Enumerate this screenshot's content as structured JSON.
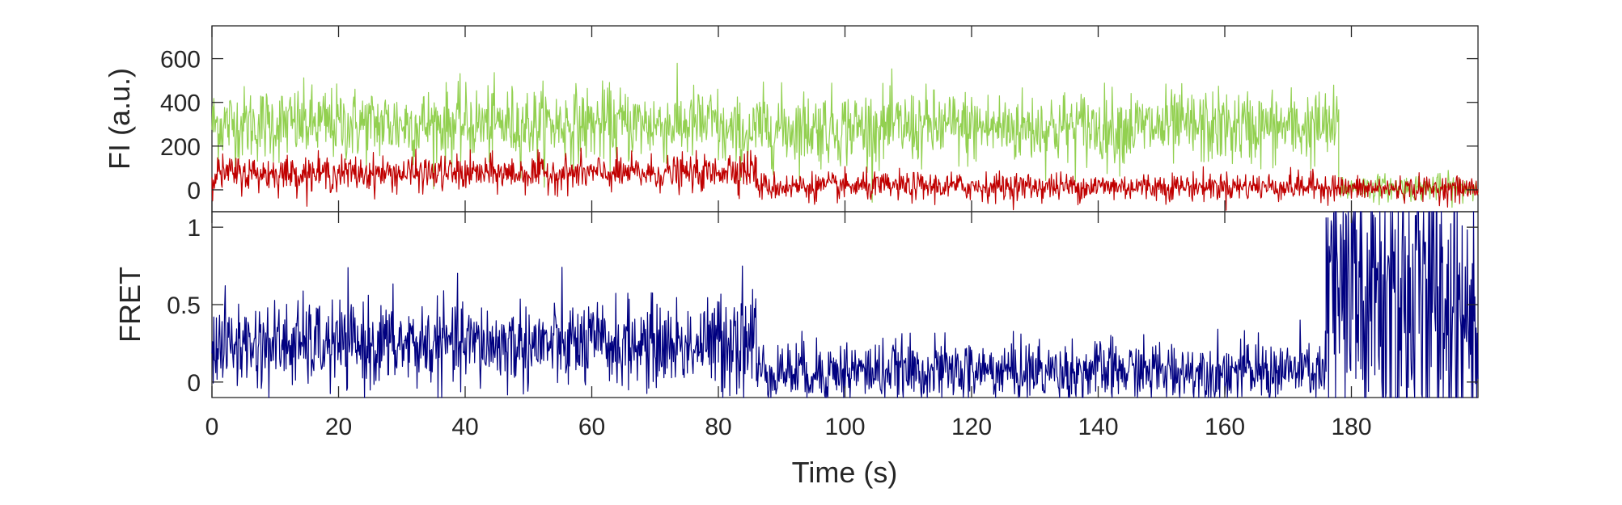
{
  "chart_data": [
    {
      "type": "line",
      "panel": "top",
      "ylabel": "FI (a.u.)",
      "xlim": [
        0,
        200
      ],
      "ylim": [
        -100,
        750
      ],
      "yticks": [
        0,
        200,
        400,
        600
      ],
      "grid": false,
      "legend": "none",
      "series": [
        {
          "color": "#92d050",
          "segments": [
            {
              "x_range": [
                0,
                80
              ],
              "mean": 300,
              "noise": 85
            },
            {
              "x_range": [
                80,
                86
              ],
              "mean": 255,
              "noise": 80
            },
            {
              "x_range": [
                86,
                178
              ],
              "mean": 285,
              "noise": 85
            },
            {
              "x_range": [
                178,
                200
              ],
              "mean": 10,
              "noise": 30
            }
          ]
        },
        {
          "color": "#c00000",
          "segments": [
            {
              "x_range": [
                0,
                80
              ],
              "mean": 75,
              "noise": 40
            },
            {
              "x_range": [
                80,
                86
              ],
              "mean": 95,
              "noise": 45
            },
            {
              "x_range": [
                86,
                178
              ],
              "mean": 15,
              "noise": 32
            },
            {
              "x_range": [
                178,
                200
              ],
              "mean": 5,
              "noise": 28
            }
          ]
        }
      ]
    },
    {
      "type": "line",
      "panel": "bottom",
      "ylabel": "FRET",
      "xlabel": "Time (s)",
      "xlim": [
        0,
        200
      ],
      "ylim": [
        -0.1,
        1.1
      ],
      "yticks": [
        0,
        0.5,
        1
      ],
      "xticks": [
        0,
        20,
        40,
        60,
        80,
        100,
        120,
        140,
        160,
        180
      ],
      "grid": false,
      "legend": "none",
      "series": [
        {
          "color": "#000080",
          "segments": [
            {
              "x_range": [
                0,
                80
              ],
              "mean": 0.24,
              "noise": 0.14
            },
            {
              "x_range": [
                80,
                86
              ],
              "mean": 0.3,
              "noise": 0.2
            },
            {
              "x_range": [
                86,
                176
              ],
              "mean": 0.07,
              "noise": 0.1
            },
            {
              "x_range": [
                176,
                200
              ],
              "mean": 0.5,
              "noise": 0.6
            }
          ]
        }
      ]
    }
  ]
}
